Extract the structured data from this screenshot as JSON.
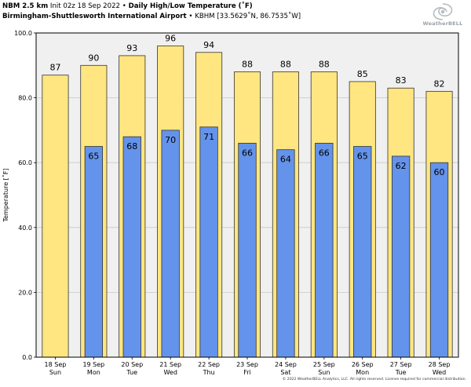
{
  "header": {
    "model": "NBM 2.5 km",
    "init": "Init 02z 18 Sep 2022",
    "product": "Daily High/Low Temperature (˚F)",
    "station": "Birmingham-Shuttlesworth International Airport",
    "station_info": "KBHM [33.5629˚N, 86.7535˚W]"
  },
  "logo": {
    "text": "WeatherBELL",
    "icon": "storm-swirl-icon"
  },
  "footer": "© 2022 WeatherBELL Analytics, LLC. All rights reserved. License required for commercial distribution.",
  "colors": {
    "high": "#ffe680",
    "low": "#6493eb",
    "plot_bg": "#f0f0f0",
    "grid": "#c8c8c8"
  },
  "chart_data": {
    "type": "bar",
    "ylabel": "Temperature [˚F]",
    "ylim": [
      0,
      100
    ],
    "yticks": [
      "0.0",
      "20.0",
      "40.0",
      "60.0",
      "80.0",
      "100.0"
    ],
    "grid": true,
    "categories": [
      [
        "18 Sep",
        "Sun"
      ],
      [
        "19 Sep",
        "Mon"
      ],
      [
        "20 Sep",
        "Tue"
      ],
      [
        "21 Sep",
        "Wed"
      ],
      [
        "22 Sep",
        "Thu"
      ],
      [
        "23 Sep",
        "Fri"
      ],
      [
        "24 Sep",
        "Sat"
      ],
      [
        "25 Sep",
        "Sun"
      ],
      [
        "26 Sep",
        "Mon"
      ],
      [
        "27 Sep",
        "Tue"
      ],
      [
        "28 Sep",
        "Wed"
      ]
    ],
    "series": [
      {
        "key": "high",
        "values": [
          87,
          90,
          93,
          96,
          94,
          88,
          88,
          88,
          85,
          83,
          82
        ]
      },
      {
        "key": "low",
        "values": [
          null,
          65,
          68,
          70,
          71,
          66,
          64,
          66,
          65,
          62,
          60
        ]
      }
    ]
  }
}
